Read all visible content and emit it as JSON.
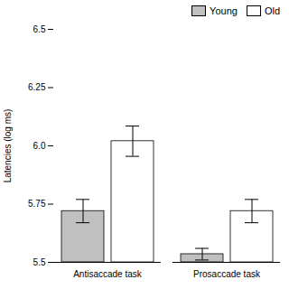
{
  "chart_data": {
    "type": "bar",
    "categories": [
      "Antisaccade task",
      "Prosaccade task"
    ],
    "series": [
      {
        "name": "Young",
        "color": "#c0c0c0",
        "values": [
          5.72,
          5.535
        ],
        "errors": [
          0.05,
          0.025
        ]
      },
      {
        "name": "Old",
        "color": "#ffffff",
        "values": [
          6.02,
          5.72
        ],
        "errors": [
          0.065,
          0.05
        ]
      }
    ],
    "ylabel": "Latencies (log ms)",
    "ylim": [
      5.5,
      6.5
    ],
    "yticks": [
      5.5,
      5.75,
      {
        "value": 6.0,
        "label": "6.0"
      },
      6.25,
      6.5
    ],
    "legend": "upper right"
  }
}
